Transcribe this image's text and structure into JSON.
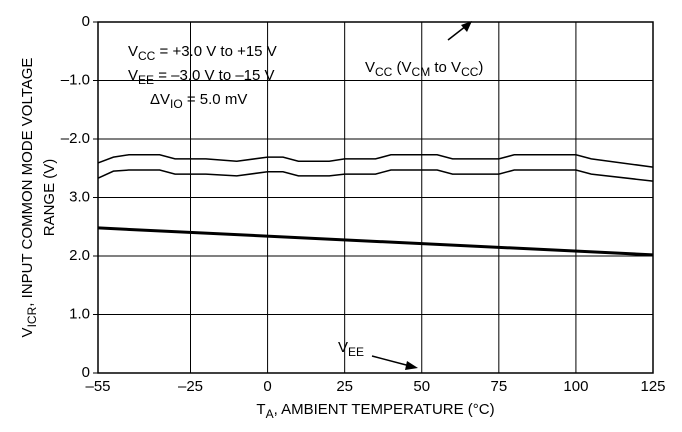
{
  "chart_data": {
    "type": "line",
    "x_label": [
      "T",
      "A",
      ", AMBIENT TEMPERATURE (°C)"
    ],
    "y_label": [
      [
        "V",
        "ICR",
        ", INPUT COMMON MODE VOLTAGE"
      ],
      [
        "RANGE (V)"
      ]
    ],
    "xlim": [
      -55,
      125
    ],
    "xticks": [
      {
        "value": -55,
        "label": "–55"
      },
      {
        "value": -25,
        "label": "–25"
      },
      0,
      25,
      50,
      75,
      100,
      125
    ],
    "ylim": [
      0,
      6
    ],
    "yticks": [
      0,
      {
        "value": 1,
        "label": "1.0"
      },
      {
        "value": 2,
        "label": "2.0"
      },
      {
        "value": 3,
        "label": "3.0"
      }
    ],
    "y2lim": [
      -6,
      0
    ],
    "y2ticks": [
      0,
      {
        "value": -1,
        "label": "–1.0"
      },
      {
        "value": -2,
        "label": "–2.0"
      }
    ],
    "grid": true,
    "annotations": [
      {
        "parts": [
          "V",
          "CC",
          " = +3.0 V to +15 V"
        ]
      },
      {
        "parts": [
          "V",
          "EE",
          " = –3.0 V to –15 V"
        ]
      },
      {
        "parts": [
          "ΔV",
          "IO",
          " = 5.0 mV"
        ]
      },
      {
        "parts": [
          "V",
          "CC",
          " (V",
          "CM",
          " to V",
          "CC",
          ")"
        ]
      },
      {
        "parts": [
          "V",
          "EE"
        ]
      }
    ],
    "series": [
      {
        "axis": "y2",
        "color": "#000000",
        "x": [
          -55,
          -50,
          -45,
          -35,
          -30,
          -20,
          -10,
          0,
          5,
          10,
          20,
          25,
          35,
          40,
          55,
          60,
          75,
          80,
          95,
          100,
          105,
          125
        ],
        "values": [
          -2.41,
          -2.31,
          -2.27,
          -2.27,
          -2.34,
          -2.34,
          -2.38,
          -2.31,
          -2.31,
          -2.38,
          -2.38,
          -2.34,
          -2.34,
          -2.27,
          -2.27,
          -2.34,
          -2.34,
          -2.27,
          -2.27,
          -2.27,
          -2.34,
          -2.48
        ]
      },
      {
        "axis": "y2",
        "color": "#000000",
        "x": [
          -55,
          -50,
          -45,
          -35,
          -30,
          -20,
          -10,
          0,
          5,
          10,
          20,
          25,
          35,
          40,
          55,
          60,
          75,
          80,
          95,
          100,
          105,
          125
        ],
        "values": [
          -2.67,
          -2.55,
          -2.53,
          -2.53,
          -2.6,
          -2.6,
          -2.63,
          -2.56,
          -2.56,
          -2.63,
          -2.63,
          -2.6,
          -2.6,
          -2.53,
          -2.53,
          -2.6,
          -2.6,
          -2.53,
          -2.53,
          -2.53,
          -2.6,
          -2.72
        ]
      },
      {
        "color": "#000000",
        "width": 3,
        "x": [
          -55,
          125
        ],
        "values": [
          2.48,
          2.02
        ]
      }
    ]
  }
}
